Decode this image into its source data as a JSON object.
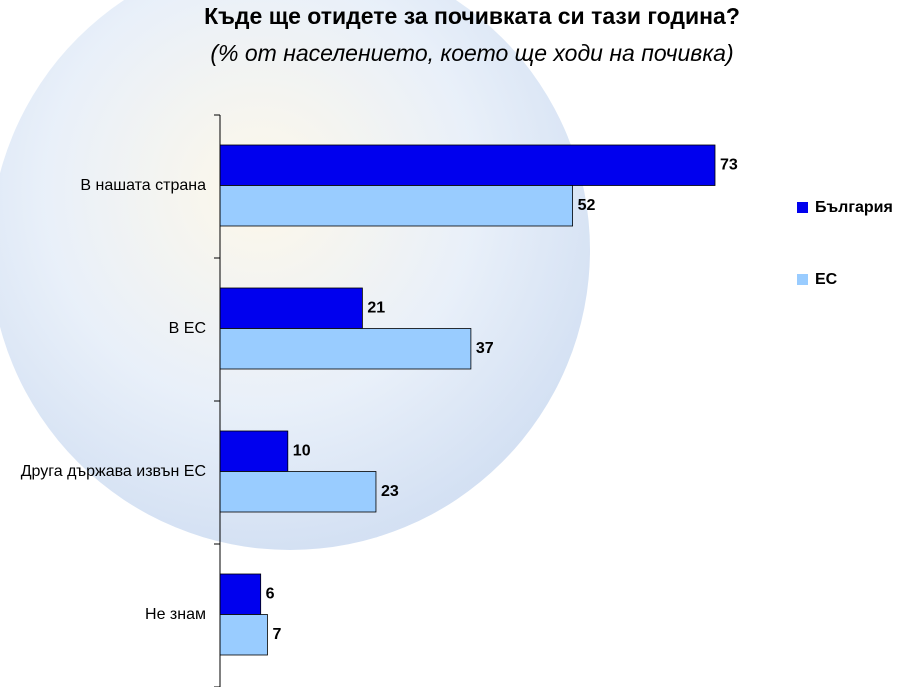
{
  "chart_data": {
    "type": "bar",
    "orientation": "horizontal",
    "title": "Къде ще отидете за почивката си тази година?",
    "subtitle": "(% от населението, което ще ходи на почивка)",
    "categories": [
      "В нашата страна",
      "В ЕС",
      "Друга държава извън ЕС",
      "Не знам"
    ],
    "series": [
      {
        "name": "България",
        "color": "#0000ee",
        "values": [
          73,
          21,
          10,
          6
        ]
      },
      {
        "name": "ЕС",
        "color": "#99ccff",
        "values": [
          52,
          37,
          23,
          7
        ]
      }
    ],
    "legend": "right"
  }
}
